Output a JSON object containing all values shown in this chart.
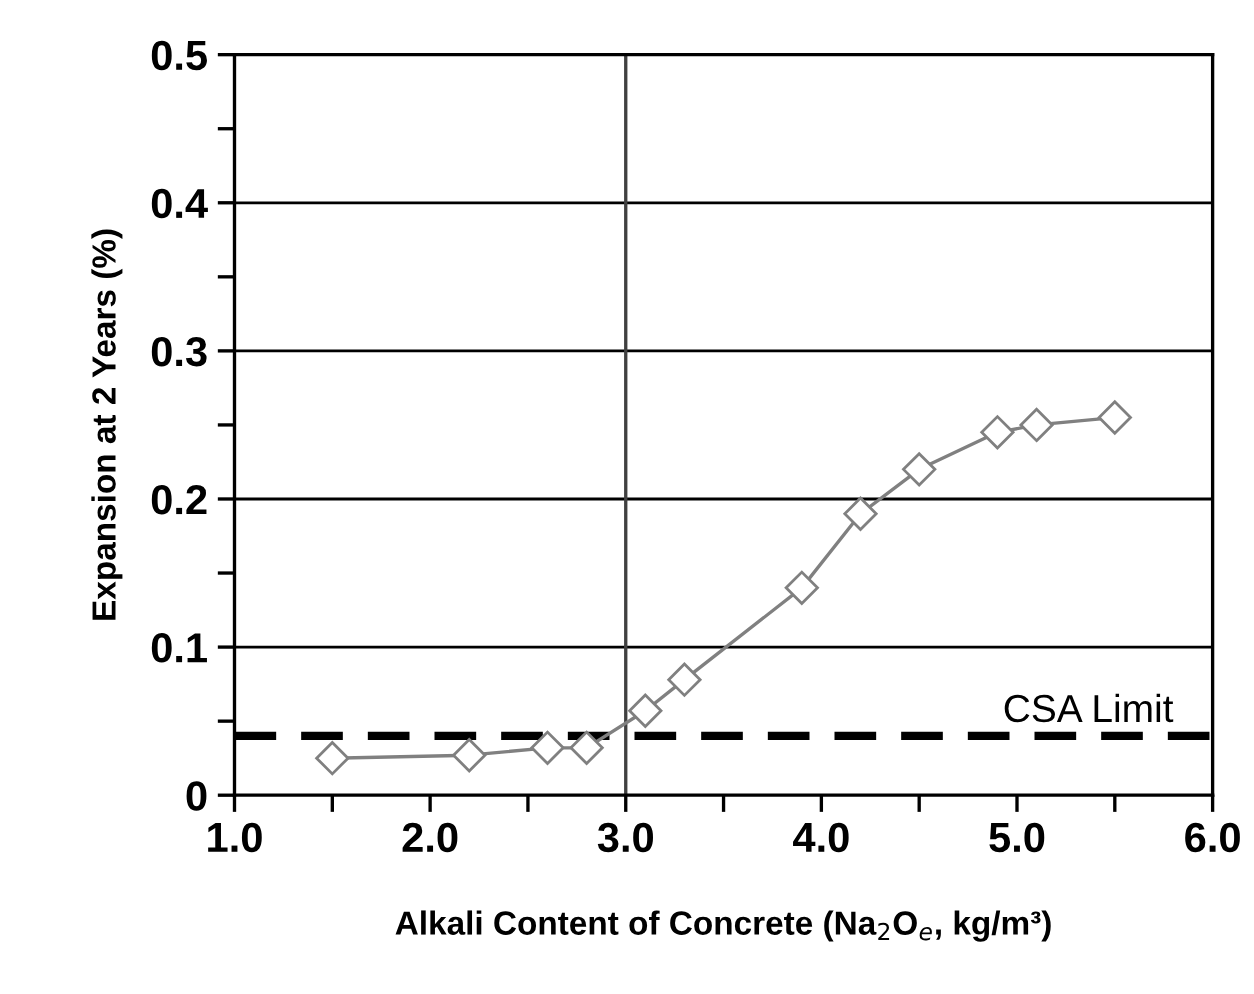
{
  "chart_data": {
    "type": "line",
    "xlabel": "Alkali Content of Concrete (Na$_{2}$O$_{e}$, kg/m³)",
    "ylabel": "Expansion at 2 Years (%)",
    "series": [
      {
        "color": "#808080",
        "x": [
          1.5,
          2.2,
          2.6,
          2.8,
          3.1,
          3.3,
          3.9,
          4.2,
          4.5,
          4.9,
          5.1,
          5.5
        ],
        "values": [
          0.025,
          0.027,
          0.032,
          0.032,
          0.057,
          0.078,
          0.14,
          0.19,
          0.22,
          0.245,
          0.25,
          0.255
        ]
      }
    ],
    "marker": "diamond",
    "line_style": "solid",
    "xlim": [
      1.0,
      6.0
    ],
    "xticks": [
      {
        "value": 1.0,
        "label": "1.0"
      },
      {
        "value": 1.5,
        "label": null
      },
      {
        "value": 2.0,
        "label": "2.0"
      },
      {
        "value": 2.5,
        "label": null
      },
      {
        "value": 3.0,
        "label": "3.0"
      },
      {
        "value": 3.5,
        "label": null
      },
      {
        "value": 4.0,
        "label": "4.0"
      },
      {
        "value": 4.5,
        "label": null
      },
      {
        "value": 5.0,
        "label": "5.0"
      },
      {
        "value": 5.5,
        "label": null
      },
      {
        "value": 6.0,
        "label": "6.0"
      }
    ],
    "ylim": [
      0,
      0.5
    ],
    "yticks": [
      0,
      {
        "value": 0.05,
        "label": null
      },
      0.1,
      {
        "value": 0.15,
        "label": null
      },
      0.2,
      {
        "value": 0.25,
        "label": null
      },
      0.3,
      {
        "value": 0.35,
        "label": null
      },
      0.4,
      {
        "value": 0.45,
        "label": null
      },
      0.5
    ],
    "grid": "y",
    "ref_lines": [
      {
        "axis": "x",
        "value": 3.0,
        "color": "#404040",
        "line_style": "solid"
      },
      {
        "axis": "y",
        "value": 0.04,
        "label": "CSA Limit",
        "color": "#000000",
        "line_style": "dashed"
      }
    ]
  }
}
